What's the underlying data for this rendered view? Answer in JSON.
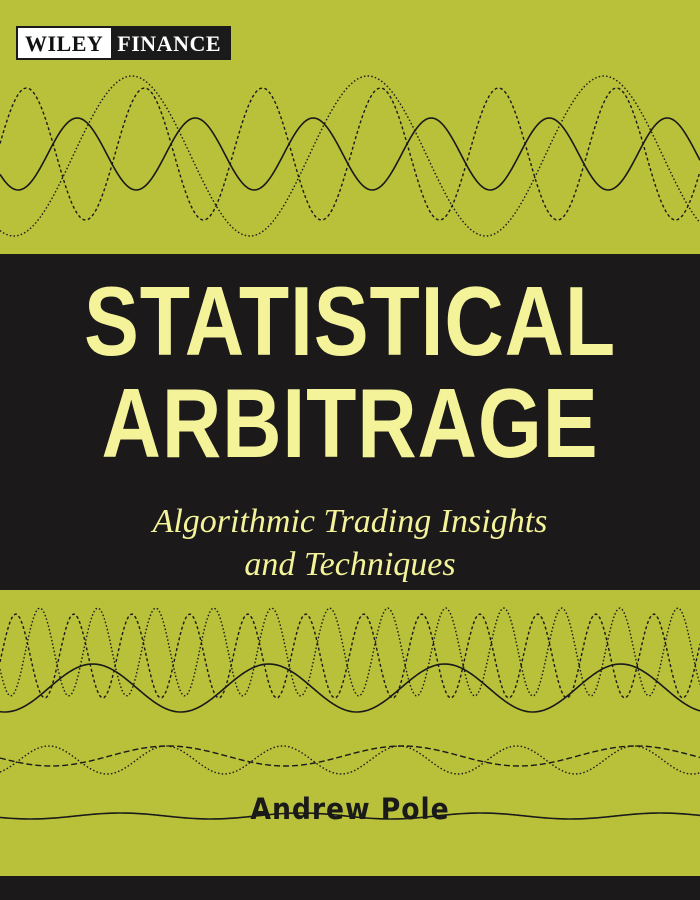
{
  "publisher": {
    "imprint": "WILEY",
    "series": "FINANCE"
  },
  "title": {
    "line1": "STATISTICAL",
    "line2": "ARBITRAGE"
  },
  "subtitle": {
    "line1": "Algorithmic Trading Insights",
    "line2": "and Techniques"
  },
  "author": "Andrew Pole",
  "colors": {
    "background": "#b9c03a",
    "band": "#1b1919",
    "title_text": "#f4f39a",
    "wave_lines": "#1a1a1a"
  }
}
